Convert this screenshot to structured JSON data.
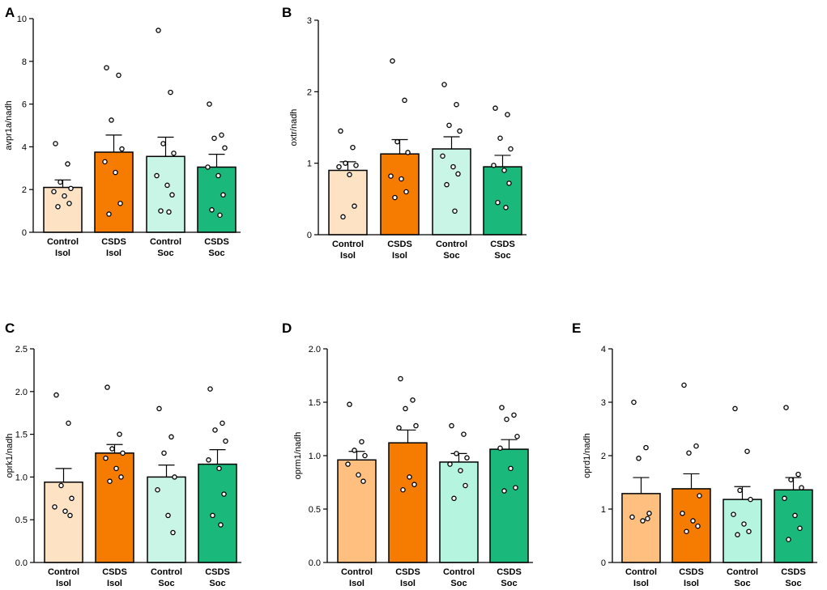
{
  "figure": {
    "bar_stroke": "#000000"
  },
  "chart_data": [
    {
      "panel": "A",
      "type": "bar",
      "ylabel": "avpr1a/nadh",
      "ylim": [
        0,
        10
      ],
      "yticks": [
        "0",
        "2",
        "4",
        "6",
        "8",
        "10"
      ],
      "categories": [
        {
          "line1": "Control",
          "line2": "Isol"
        },
        {
          "line1": "CSDS",
          "line2": "Isol"
        },
        {
          "line1": "Control",
          "line2": "Soc"
        },
        {
          "line1": "CSDS",
          "line2": "Soc"
        }
      ],
      "colors": [
        "#fde2c4",
        "#f57c00",
        "#c8f5e6",
        "#1ab87a"
      ],
      "values": [
        2.1,
        3.75,
        3.55,
        3.05
      ],
      "errors": [
        0.35,
        0.8,
        0.9,
        0.6
      ],
      "points": [
        [
          4.15,
          3.2,
          2.35,
          2.05,
          1.9,
          1.7,
          1.35,
          1.2
        ],
        [
          7.7,
          7.35,
          5.25,
          3.9,
          3.3,
          2.8,
          1.35,
          0.85
        ],
        [
          9.45,
          6.55,
          4.15,
          3.7,
          2.65,
          2.2,
          1.75,
          1.0,
          0.95
        ],
        [
          6.0,
          4.55,
          4.4,
          3.95,
          3.05,
          2.65,
          1.75,
          1.05,
          0.8
        ]
      ]
    },
    {
      "panel": "B",
      "type": "bar",
      "ylabel": "oxtr/nadh",
      "ylim": [
        0,
        3
      ],
      "yticks": [
        "0",
        "1",
        "2",
        "3"
      ],
      "categories": [
        {
          "line1": "Control",
          "line2": "Isol"
        },
        {
          "line1": "CSDS",
          "line2": "Isol"
        },
        {
          "line1": "Control",
          "line2": "Soc"
        },
        {
          "line1": "CSDS",
          "line2": "Soc"
        }
      ],
      "colors": [
        "#fde2c4",
        "#f57c00",
        "#c8f5e6",
        "#1ab87a"
      ],
      "values": [
        0.9,
        1.13,
        1.2,
        0.95
      ],
      "errors": [
        0.12,
        0.2,
        0.17,
        0.16
      ],
      "points": [
        [
          1.45,
          1.22,
          1.0,
          0.97,
          0.95,
          0.84,
          0.4,
          0.25
        ],
        [
          2.43,
          1.88,
          1.3,
          1.15,
          0.82,
          0.78,
          0.6,
          0.52
        ],
        [
          2.1,
          1.82,
          1.53,
          1.45,
          1.1,
          0.95,
          0.85,
          0.7,
          0.33
        ],
        [
          1.77,
          1.68,
          1.35,
          1.2,
          0.97,
          0.9,
          0.72,
          0.45,
          0.38
        ]
      ]
    },
    {
      "panel": "C",
      "type": "bar",
      "ylabel": "oprk1/nadh",
      "ylim": [
        0,
        2.5
      ],
      "yticks": [
        "0.0",
        "0.5",
        "1.0",
        "1.5",
        "2.0",
        "2.5"
      ],
      "categories": [
        {
          "line1": "Control",
          "line2": "Isol"
        },
        {
          "line1": "CSDS",
          "line2": "Isol"
        },
        {
          "line1": "Control",
          "line2": "Soc"
        },
        {
          "line1": "CSDS",
          "line2": "Soc"
        }
      ],
      "colors": [
        "#fde2c4",
        "#f57c00",
        "#c8f5e6",
        "#1ab87a"
      ],
      "values": [
        0.94,
        1.28,
        1.0,
        1.15
      ],
      "errors": [
        0.16,
        0.1,
        0.14,
        0.17
      ],
      "points": [
        [
          1.96,
          1.63,
          0.9,
          0.75,
          0.65,
          0.6,
          0.55
        ],
        [
          2.05,
          1.5,
          1.33,
          1.28,
          1.22,
          1.1,
          1.0,
          0.95
        ],
        [
          1.8,
          1.47,
          1.28,
          1.0,
          0.85,
          0.55,
          0.35
        ],
        [
          2.03,
          1.63,
          1.55,
          1.42,
          1.2,
          1.1,
          0.8,
          0.55,
          0.44
        ]
      ]
    },
    {
      "panel": "D",
      "type": "bar",
      "ylabel": "oprm1/nadh",
      "ylim": [
        0,
        2.0
      ],
      "yticks": [
        "0.0",
        "0.5",
        "1.0",
        "1.5",
        "2.0"
      ],
      "categories": [
        {
          "line1": "Control",
          "line2": "Isol"
        },
        {
          "line1": "CSDS",
          "line2": "Isol"
        },
        {
          "line1": "Control",
          "line2": "Soc"
        },
        {
          "line1": "CSDS",
          "line2": "Soc"
        }
      ],
      "colors": [
        "#ffc07f",
        "#f57c00",
        "#b5f5e0",
        "#1ab87a"
      ],
      "values": [
        0.96,
        1.12,
        0.94,
        1.06
      ],
      "errors": [
        0.08,
        0.12,
        0.08,
        0.09
      ],
      "points": [
        [
          1.48,
          1.13,
          1.05,
          1.0,
          0.92,
          0.82,
          0.76
        ],
        [
          1.72,
          1.52,
          1.44,
          1.28,
          1.26,
          0.8,
          0.73,
          0.68
        ],
        [
          1.28,
          1.2,
          1.02,
          0.98,
          0.92,
          0.86,
          0.72,
          0.6
        ],
        [
          1.45,
          1.38,
          1.34,
          1.18,
          1.07,
          0.88,
          0.7,
          0.67
        ]
      ]
    },
    {
      "panel": "E",
      "type": "bar",
      "ylabel": "oprd1/nadh",
      "ylim": [
        0,
        4
      ],
      "yticks": [
        "0",
        "1",
        "2",
        "3",
        "4"
      ],
      "categories": [
        {
          "line1": "Control",
          "line2": "Isol"
        },
        {
          "line1": "CSDS",
          "line2": "Isol"
        },
        {
          "line1": "Control",
          "line2": "Soc"
        },
        {
          "line1": "CSDS",
          "line2": "Soc"
        }
      ],
      "colors": [
        "#ffc07f",
        "#f57c00",
        "#b5f5e0",
        "#1ab87a"
      ],
      "values": [
        1.29,
        1.38,
        1.18,
        1.36
      ],
      "errors": [
        0.3,
        0.28,
        0.24,
        0.23
      ],
      "points": [
        [
          3.0,
          2.15,
          1.95,
          0.92,
          0.85,
          0.78,
          0.82
        ],
        [
          3.32,
          2.18,
          2.05,
          1.25,
          0.92,
          0.78,
          0.68,
          0.58
        ],
        [
          2.88,
          2.08,
          1.35,
          1.18,
          0.9,
          0.72,
          0.58,
          0.52
        ],
        [
          2.9,
          1.65,
          1.55,
          1.4,
          1.2,
          0.88,
          0.64,
          0.43
        ]
      ]
    }
  ]
}
